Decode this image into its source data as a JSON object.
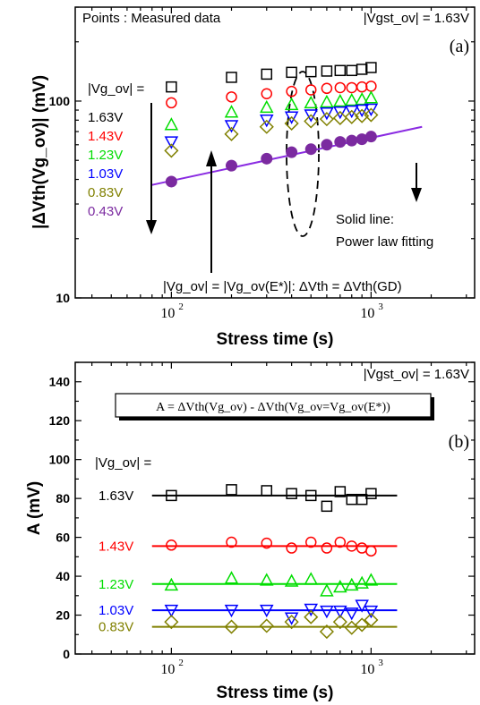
{
  "chart_data": [
    {
      "type": "scatter",
      "panel_tag": "(a)",
      "note_left": "Points : Measured data",
      "note_right": "|Vgst_ov| = 1.63V",
      "xlabel": "Stress time (s)",
      "ylabel": "|ΔVth(Vg_ov)| (mV)",
      "xscale": "log",
      "yscale": "log",
      "xlim": [
        33,
        3300
      ],
      "ylim": [
        10,
        300
      ],
      "xticks": [
        {
          "v": 100,
          "label": "10",
          "sup": "2"
        },
        {
          "v": 1000,
          "label": "10",
          "sup": "3"
        }
      ],
      "yticks": [
        {
          "v": 10,
          "label": "10"
        },
        {
          "v": 100,
          "label": "100"
        }
      ],
      "legend_title": "|Vg_ov| =",
      "legend_side_label": "",
      "x": [
        100,
        200,
        300,
        400,
        500,
        600,
        700,
        800,
        900,
        1000
      ],
      "series": [
        {
          "name": "1.63V",
          "color": "#000000",
          "marker": "square",
          "values": [
            118,
            132,
            137,
            140,
            141,
            142,
            143,
            143,
            145,
            148
          ]
        },
        {
          "name": "1.43V",
          "color": "#ff0000",
          "marker": "circle",
          "values": [
            98,
            105,
            109,
            112,
            114,
            116,
            117,
            117,
            118,
            119
          ]
        },
        {
          "name": "1.23V",
          "color": "#00dd00",
          "marker": "triangle",
          "values": [
            76,
            88,
            93,
            96,
            98,
            99,
            100,
            101,
            102,
            104
          ]
        },
        {
          "name": "1.03V",
          "color": "#0000ff",
          "marker": "tri-down",
          "values": [
            62,
            75,
            80,
            83,
            85,
            87,
            88,
            89,
            90,
            91
          ]
        },
        {
          "name": "0.83V",
          "color": "#808000",
          "marker": "diamond",
          "values": [
            56,
            68,
            74,
            77,
            79,
            81,
            82,
            83,
            84,
            85
          ]
        },
        {
          "name": "0.43V",
          "color": "#7b2aa0",
          "marker": "filled-circle",
          "values": [
            39,
            47,
            51,
            55,
            57,
            60,
            62,
            63,
            64,
            66
          ]
        }
      ],
      "fit_line": {
        "color": "#8a2be2",
        "x": [
          80,
          1800
        ],
        "y": [
          37.5,
          74
        ]
      },
      "annotation_bottom": "|Vg_ov| = |Vg_ov(E*)|:  ΔVth = ΔVth(GD)",
      "annotation_fit": [
        "Solid line:",
        "Power law fitting"
      ]
    },
    {
      "type": "scatter",
      "panel_tag": "(b)",
      "note_right": "|Vgst_ov| = 1.63V",
      "formula": "A = ΔVth(Vg_ov) - ΔVth(Vg_ov=Vg_ov(E*))",
      "xlabel": "Stress time (s)",
      "ylabel": "A (mV)",
      "xscale": "log",
      "yscale": "linear",
      "xlim": [
        33,
        3300
      ],
      "ylim": [
        0,
        150
      ],
      "xticks": [
        {
          "v": 100,
          "label": "10",
          "sup": "2"
        },
        {
          "v": 1000,
          "label": "10",
          "sup": "3"
        }
      ],
      "yticks": [
        0,
        20,
        40,
        60,
        80,
        100,
        120,
        140
      ],
      "legend_title": "|Vg_ov| =",
      "x": [
        100,
        200,
        300,
        400,
        500,
        600,
        700,
        800,
        900,
        1000
      ],
      "series": [
        {
          "name": "1.63V",
          "color": "#000000",
          "marker": "square",
          "values": [
            81.5,
            84.5,
            84,
            82.5,
            81.5,
            76,
            83.5,
            79.5,
            79.5,
            82.5
          ],
          "fit": 81.5
        },
        {
          "name": "1.43V",
          "color": "#ff0000",
          "marker": "circle",
          "values": [
            56,
            57.5,
            57,
            54.5,
            57.5,
            54.5,
            57.5,
            55.5,
            54.5,
            53
          ],
          "fit": 55.5
        },
        {
          "name": "1.23V",
          "color": "#00dd00",
          "marker": "triangle",
          "values": [
            35.5,
            39,
            38,
            37.5,
            38.5,
            32.5,
            34.5,
            35.5,
            36.5,
            38
          ],
          "fit": 36
        },
        {
          "name": "1.03V",
          "color": "#0000ff",
          "marker": "tri-down",
          "values": [
            22.5,
            22.5,
            22.5,
            18.5,
            23,
            22,
            22,
            21,
            25,
            22
          ],
          "fit": 22.5
        },
        {
          "name": "0.83V",
          "color": "#808000",
          "marker": "diamond",
          "values": [
            16.5,
            14,
            14.5,
            16.5,
            19,
            11.5,
            16.5,
            13.5,
            15,
            17.5
          ],
          "fit": 14
        }
      ]
    }
  ]
}
